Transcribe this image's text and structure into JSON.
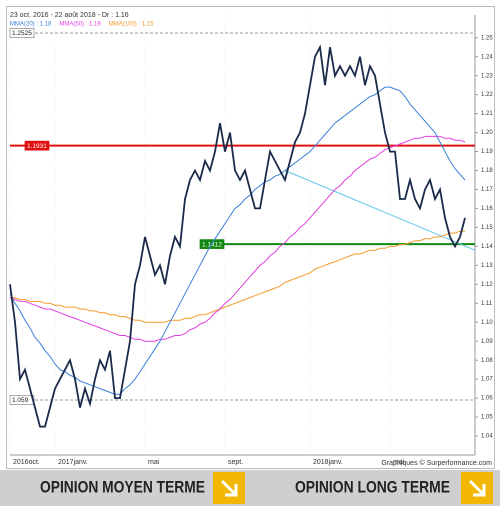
{
  "chart_data": {
    "type": "line",
    "title": "23 oct. 2016 - 22 août 2018 - Dr : 1.16",
    "credit": "Graphiques © Surperformance.com",
    "xlim": [
      0,
      93
    ],
    "xticks": [
      {
        "value": 0,
        "label": "2016oct."
      },
      {
        "value": 9,
        "label": "2017janv."
      },
      {
        "value": 27,
        "label": "mai"
      },
      {
        "value": 43,
        "label": "sept."
      },
      {
        "value": 60,
        "label": "2018janv."
      },
      {
        "value": 76,
        "label": "mai"
      }
    ],
    "ylim": [
      1.03,
      1.262
    ],
    "yticks": [
      1.04,
      1.05,
      1.06,
      1.07,
      1.08,
      1.09,
      {
        "value": 1.1,
        "label": "1.10"
      },
      1.11,
      1.12,
      1.13,
      1.14,
      1.15,
      1.16,
      1.17,
      1.18,
      1.19,
      {
        "value": 1.2,
        "label": "1.20"
      },
      1.21,
      1.22,
      1.23,
      1.24,
      1.25
    ],
    "x": [
      0,
      1,
      2,
      3,
      4,
      5,
      6,
      7,
      8,
      9,
      10,
      11,
      12,
      13,
      14,
      15,
      16,
      17,
      18,
      19,
      20,
      21,
      22,
      23,
      24,
      25,
      26,
      27,
      28,
      29,
      30,
      31,
      32,
      33,
      34,
      35,
      36,
      37,
      38,
      39,
      40,
      41,
      42,
      43,
      44,
      45,
      46,
      47,
      48,
      49,
      50,
      51,
      52,
      53,
      54,
      55,
      56,
      57,
      58,
      59,
      60,
      61,
      62,
      63,
      64,
      65,
      66,
      67,
      68,
      69,
      70,
      71,
      72,
      73,
      74,
      75,
      76,
      77,
      78,
      79,
      80,
      81,
      82,
      83,
      84,
      85,
      86,
      87,
      88,
      89,
      90,
      91
    ],
    "series": [
      {
        "name": "MMA(100) : 1.15",
        "color": "#f39a2b",
        "values": [
          1.113,
          1.113,
          1.112,
          1.112,
          1.111,
          1.111,
          1.111,
          1.11,
          1.11,
          1.109,
          1.109,
          1.108,
          1.108,
          1.108,
          1.107,
          1.107,
          1.106,
          1.106,
          1.105,
          1.105,
          1.104,
          1.104,
          1.103,
          1.103,
          1.102,
          1.101,
          1.101,
          1.1,
          1.1,
          1.1,
          1.1,
          1.1,
          1.101,
          1.101,
          1.101,
          1.102,
          1.102,
          1.103,
          1.104,
          1.104,
          1.105,
          1.106,
          1.107,
          1.108,
          1.109,
          1.11,
          1.111,
          1.112,
          1.113,
          1.114,
          1.115,
          1.116,
          1.117,
          1.118,
          1.119,
          1.121,
          1.122,
          1.123,
          1.124,
          1.125,
          1.126,
          1.128,
          1.129,
          1.13,
          1.131,
          1.132,
          1.133,
          1.134,
          1.135,
          1.136,
          1.136,
          1.137,
          1.138,
          1.138,
          1.139,
          1.139,
          1.14,
          1.14,
          1.141,
          1.141,
          1.142,
          1.143,
          1.143,
          1.144,
          1.144,
          1.145,
          1.145,
          1.146,
          1.147,
          1.147,
          1.148,
          1.148
        ]
      },
      {
        "name": "MMA(50) : 1.19",
        "color": "#e040e0",
        "values": [
          1.113,
          1.112,
          1.111,
          1.111,
          1.11,
          1.109,
          1.108,
          1.107,
          1.107,
          1.106,
          1.105,
          1.104,
          1.103,
          1.102,
          1.101,
          1.1,
          1.099,
          1.098,
          1.097,
          1.096,
          1.095,
          1.094,
          1.093,
          1.093,
          1.092,
          1.091,
          1.091,
          1.09,
          1.09,
          1.09,
          1.091,
          1.091,
          1.092,
          1.093,
          1.093,
          1.094,
          1.096,
          1.097,
          1.099,
          1.1,
          1.102,
          1.105,
          1.107,
          1.11,
          1.112,
          1.115,
          1.118,
          1.121,
          1.124,
          1.127,
          1.13,
          1.132,
          1.135,
          1.137,
          1.14,
          1.142,
          1.145,
          1.147,
          1.15,
          1.152,
          1.155,
          1.158,
          1.161,
          1.164,
          1.167,
          1.17,
          1.172,
          1.175,
          1.177,
          1.18,
          1.182,
          1.184,
          1.186,
          1.187,
          1.189,
          1.191,
          1.192,
          1.193,
          1.194,
          1.195,
          1.196,
          1.197,
          1.197,
          1.198,
          1.198,
          1.198,
          1.198,
          1.197,
          1.197,
          1.196,
          1.196,
          1.195
        ]
      },
      {
        "name": "MMA(20) : 1.18",
        "color": "#3a7fd9",
        "values": [
          1.115,
          1.11,
          1.106,
          1.101,
          1.097,
          1.092,
          1.089,
          1.085,
          1.082,
          1.078,
          1.075,
          1.074,
          1.072,
          1.071,
          1.069,
          1.068,
          1.067,
          1.066,
          1.065,
          1.064,
          1.063,
          1.062,
          1.062,
          1.065,
          1.067,
          1.07,
          1.074,
          1.078,
          1.082,
          1.086,
          1.09,
          1.095,
          1.1,
          1.105,
          1.11,
          1.115,
          1.12,
          1.125,
          1.13,
          1.135,
          1.14,
          1.144,
          1.148,
          1.152,
          1.156,
          1.16,
          1.162,
          1.165,
          1.167,
          1.17,
          1.172,
          1.174,
          1.175,
          1.177,
          1.178,
          1.18,
          1.182,
          1.184,
          1.186,
          1.188,
          1.19,
          1.193,
          1.196,
          1.199,
          1.202,
          1.205,
          1.207,
          1.209,
          1.211,
          1.213,
          1.215,
          1.217,
          1.219,
          1.22,
          1.222,
          1.224,
          1.224,
          1.223,
          1.222,
          1.219,
          1.215,
          1.212,
          1.209,
          1.206,
          1.203,
          1.2,
          1.195,
          1.19,
          1.185,
          1.181,
          1.178,
          1.175
        ]
      },
      {
        "name": "Dr : 1.16",
        "color": "#1b2a4a",
        "values": [
          1.12,
          1.1,
          1.07,
          1.075,
          1.065,
          1.055,
          1.045,
          1.045,
          1.055,
          1.065,
          1.07,
          1.075,
          1.08,
          1.07,
          1.055,
          1.065,
          1.057,
          1.07,
          1.08,
          1.075,
          1.085,
          1.06,
          1.06,
          1.075,
          1.09,
          1.12,
          1.13,
          1.145,
          1.135,
          1.125,
          1.13,
          1.12,
          1.135,
          1.145,
          1.14,
          1.165,
          1.175,
          1.18,
          1.175,
          1.185,
          1.18,
          1.19,
          1.205,
          1.19,
          1.2,
          1.18,
          1.175,
          1.18,
          1.17,
          1.16,
          1.16,
          1.175,
          1.19,
          1.185,
          1.18,
          1.175,
          1.185,
          1.195,
          1.2,
          1.21,
          1.225,
          1.24,
          1.245,
          1.225,
          1.245,
          1.23,
          1.235,
          1.23,
          1.235,
          1.23,
          1.24,
          1.225,
          1.235,
          1.23,
          1.215,
          1.2,
          1.19,
          1.19,
          1.165,
          1.165,
          1.175,
          1.165,
          1.16,
          1.17,
          1.175,
          1.165,
          1.17,
          1.155,
          1.145,
          1.14,
          1.145,
          1.155
        ]
      }
    ],
    "trendline": {
      "color": "#62c6ea",
      "x": [
        55,
        93
      ],
      "values": [
        1.18,
        1.138
      ]
    },
    "levels": [
      {
        "value": 1.2525,
        "color": "#999999",
        "style": "dashed",
        "start": 0
      },
      {
        "value": 1.1931,
        "color": "#e01010",
        "style": "solid",
        "start": 0
      },
      {
        "value": 1.1412,
        "color": "#118811",
        "style": "solid",
        "start": 38
      },
      {
        "value": 1.059,
        "color": "#999999",
        "style": "dashed",
        "start": 0
      }
    ]
  },
  "footer_bar": {
    "left": "OPINION MOYEN TERME",
    "right": "OPINION LONG TERME"
  }
}
